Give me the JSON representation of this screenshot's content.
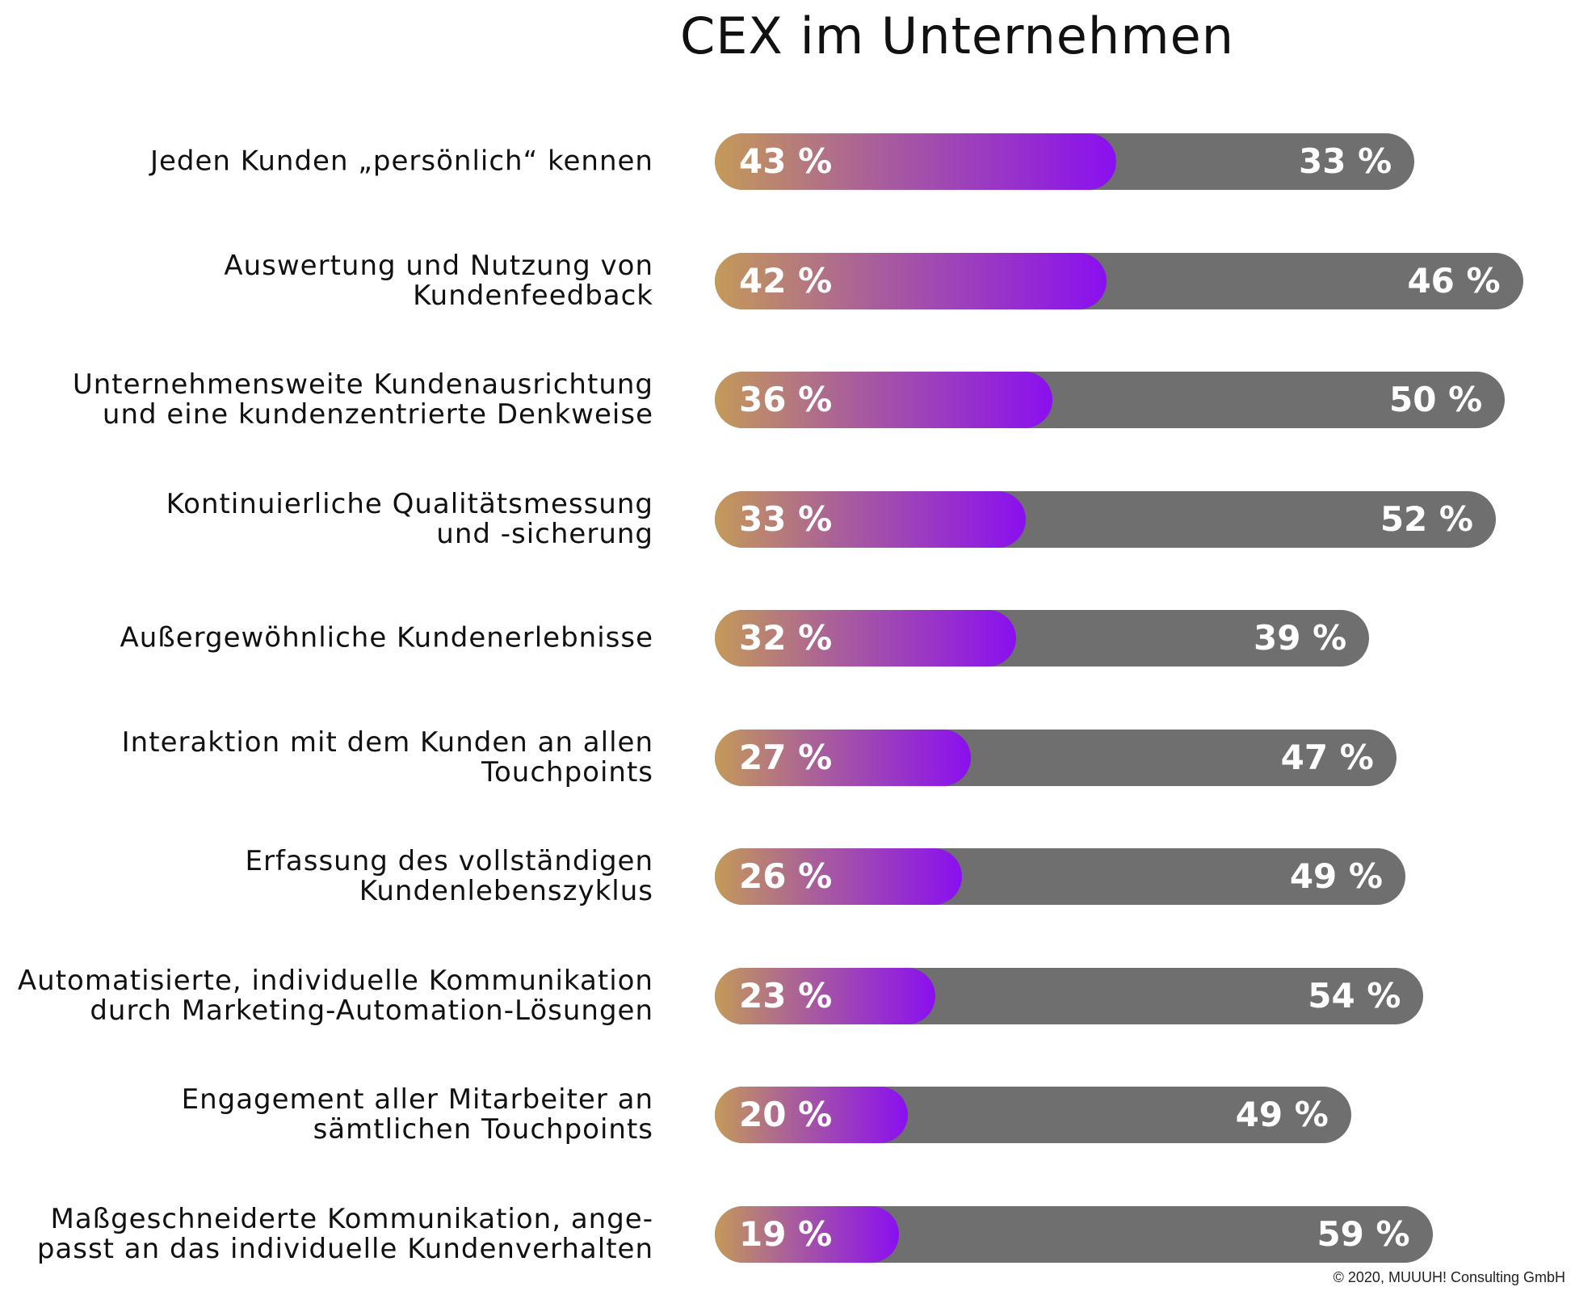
{
  "chart_data": {
    "type": "bar",
    "stacked": true,
    "title": "CEX im Unternehmen",
    "categories": [
      "Jeden Kunden „persönlich“ kennen",
      "Auswertung und Nutzung von\nKundenfeedback",
      "Unternehmensweite Kundenausrichtung\nund eine kundenzentrierte Denkweise",
      "Kontinuierliche Qualitätsmessung\nund -sicherung",
      "Außergewöhnliche Kundenerlebnisse",
      "Interaktion mit dem Kunden an allen\nTouchpoints",
      "Erfassung des vollständigen\nKundenlebenszyklus",
      "Automatisierte, individuelle Kommunikation\ndurch Marketing-Automation-Lösungen",
      "Engagement aller Mitarbeiter an\nsämtlichen Touchpoints",
      "Maßgeschneiderte Kommunikation, ange-\npasst an das individuelle Kundenverhalten"
    ],
    "series": [
      {
        "name": "gradient",
        "color": "#8a0ff0",
        "values": [
          43,
          42,
          36,
          33,
          32,
          27,
          26,
          23,
          20,
          19
        ]
      },
      {
        "name": "grey",
        "color": "#6f6f6f",
        "values": [
          33,
          46,
          50,
          52,
          39,
          47,
          49,
          54,
          49,
          59
        ]
      }
    ],
    "unit": "%",
    "xlim": [
      0,
      100
    ]
  },
  "copyright": "© 2020, MUUUH! Consulting GmbH"
}
